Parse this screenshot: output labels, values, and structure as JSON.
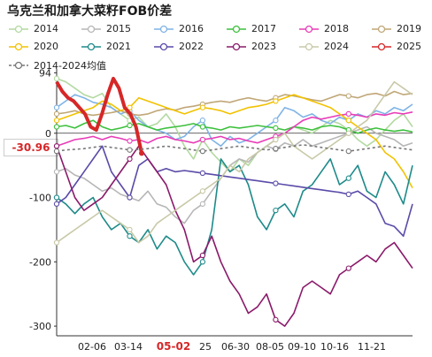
{
  "title": "乌克兰和加拿大菜籽FOB价差",
  "legend": [
    {
      "label": "2014",
      "color": "#b3d9a1"
    },
    {
      "label": "2015",
      "color": "#b6b6b6"
    },
    {
      "label": "2016",
      "color": "#7fb3e6"
    },
    {
      "label": "2017",
      "color": "#3cc03c"
    },
    {
      "label": "2018",
      "color": "#e83cb7"
    },
    {
      "label": "2019",
      "color": "#c0a777"
    },
    {
      "label": "2020",
      "color": "#f2c200"
    },
    {
      "label": "2021",
      "color": "#1f8a8a"
    },
    {
      "label": "2022",
      "color": "#5a4aa8"
    },
    {
      "label": "2023",
      "color": "#8a1a6a"
    },
    {
      "label": "2024",
      "color": "#c9c9a8"
    },
    {
      "label": "2025",
      "color": "#d62728"
    },
    {
      "label": "2014-2024均值",
      "color": "#777777"
    }
  ],
  "current_value_label": "-30.96",
  "chart_data": {
    "type": "line",
    "title": "乌克兰和加拿大菜籽FOB价差",
    "x_tick_labels": [
      "02-06",
      "03-14",
      "05-02",
      "25",
      "06-30",
      "08-05",
      "09-10",
      "10-16",
      "11-21"
    ],
    "highlighted_tick": "05-02",
    "y_tick_labels": [
      "94",
      "0",
      "-100",
      "-200",
      "-300"
    ],
    "ylim": [
      -315,
      100
    ],
    "grid": false,
    "series": [
      {
        "name": "2014",
        "color": "#b3d9a1",
        "values": [
          85,
          80,
          70,
          60,
          55,
          62,
          40,
          30,
          20,
          25,
          10,
          15,
          30,
          10,
          -20,
          -40,
          -10,
          -30,
          -45,
          -60,
          -40,
          -50,
          -30,
          -20,
          -10,
          0,
          10,
          5,
          0,
          10,
          20,
          15,
          5,
          -10,
          -20,
          -10,
          5,
          20,
          30,
          10
        ]
      },
      {
        "name": "2015",
        "color": "#b6b6b6",
        "values": [
          -60,
          -55,
          -65,
          -70,
          -80,
          -90,
          -85,
          -95,
          -100,
          -105,
          -90,
          -110,
          -115,
          -130,
          -140,
          -120,
          -110,
          -90,
          -70,
          -50,
          -40,
          -45,
          -30,
          -20,
          -25,
          -15,
          -20,
          -10,
          -20,
          -15,
          -10,
          -5,
          0,
          5,
          10,
          0,
          -5,
          -10,
          -20,
          -15
        ]
      },
      {
        "name": "2016",
        "color": "#7fb3e6",
        "values": [
          40,
          50,
          60,
          55,
          48,
          45,
          40,
          30,
          35,
          20,
          10,
          5,
          0,
          -10,
          -5,
          10,
          20,
          -10,
          -20,
          -5,
          -15,
          -10,
          0,
          10,
          20,
          40,
          35,
          25,
          30,
          20,
          15,
          25,
          20,
          30,
          25,
          35,
          30,
          40,
          35,
          45
        ]
      },
      {
        "name": "2017",
        "color": "#3cc03c",
        "values": [
          10,
          12,
          8,
          15,
          20,
          10,
          5,
          8,
          12,
          15,
          10,
          5,
          8,
          10,
          12,
          15,
          10,
          8,
          5,
          10,
          8,
          10,
          12,
          10,
          8,
          5,
          10,
          8,
          5,
          10,
          12,
          10,
          5,
          0,
          5,
          8,
          5,
          3,
          5,
          2
        ]
      },
      {
        "name": "2018",
        "color": "#e83cb7",
        "values": [
          -20,
          -15,
          -10,
          -8,
          -5,
          -10,
          -5,
          -8,
          -12,
          -10,
          -15,
          -8,
          -5,
          -10,
          -12,
          -15,
          -10,
          -8,
          -5,
          -10,
          -8,
          -12,
          -15,
          -10,
          -5,
          0,
          10,
          20,
          25,
          22,
          25,
          28,
          30,
          28,
          25,
          30,
          28,
          32,
          30,
          33
        ]
      },
      {
        "name": "2019",
        "color": "#c0a777",
        "values": [
          30,
          32,
          35,
          30,
          28,
          30,
          32,
          35,
          30,
          28,
          30,
          35,
          38,
          36,
          40,
          42,
          45,
          48,
          50,
          48,
          52,
          55,
          52,
          50,
          55,
          60,
          58,
          55,
          52,
          50,
          55,
          60,
          58,
          55,
          60,
          62,
          58,
          65,
          60,
          62
        ]
      },
      {
        "name": "2020",
        "color": "#f2c200",
        "values": [
          20,
          25,
          30,
          35,
          40,
          50,
          45,
          35,
          40,
          55,
          50,
          45,
          40,
          35,
          30,
          35,
          40,
          38,
          35,
          30,
          35,
          40,
          42,
          45,
          50,
          55,
          60,
          55,
          50,
          45,
          40,
          30,
          20,
          10,
          0,
          -10,
          -30,
          -40,
          -60,
          -85
        ]
      },
      {
        "name": "2021",
        "color": "#1f8a8a",
        "values": [
          -100,
          -110,
          -125,
          -110,
          -100,
          -130,
          -150,
          -140,
          -160,
          -170,
          -150,
          -180,
          -160,
          -170,
          -200,
          -220,
          -200,
          -150,
          -40,
          -60,
          -50,
          -80,
          -130,
          -150,
          -120,
          -110,
          -130,
          -90,
          -80,
          -60,
          -40,
          -80,
          -70,
          -50,
          -90,
          -100,
          -60,
          -80,
          -110,
          -50
        ]
      },
      {
        "name": "2022",
        "color": "#5a4aa8",
        "values": [
          -110,
          -100,
          -80,
          -60,
          -40,
          -20,
          -60,
          -80,
          -100,
          -50,
          -40,
          -60,
          -55,
          -60,
          -58,
          -60,
          -62,
          -64,
          -66,
          -68,
          -70,
          -72,
          -74,
          -76,
          -78,
          -80,
          -82,
          -84,
          -86,
          -88,
          -90,
          -92,
          -95,
          -90,
          -100,
          -110,
          -140,
          -145,
          -160,
          -110
        ]
      },
      {
        "name": "2023",
        "color": "#8a1a6a",
        "values": [
          -20,
          -60,
          -100,
          -120,
          -110,
          -100,
          -80,
          -60,
          -40,
          -20,
          -40,
          -60,
          -80,
          -120,
          -150,
          -200,
          -190,
          -160,
          -200,
          -230,
          -250,
          -280,
          -270,
          -250,
          -290,
          -300,
          -280,
          -240,
          -230,
          -240,
          -250,
          -220,
          -210,
          -200,
          -190,
          -200,
          -180,
          -170,
          -190,
          -210
        ]
      },
      {
        "name": "2024",
        "color": "#c9c9a8",
        "values": [
          -170,
          -160,
          -150,
          -140,
          -130,
          -120,
          -130,
          -140,
          -150,
          -170,
          -160,
          -140,
          -130,
          -120,
          -110,
          -100,
          -90,
          -80,
          -70,
          -50,
          -60,
          -40,
          -30,
          -20,
          -10,
          0,
          -20,
          -30,
          -40,
          -30,
          -20,
          -10,
          0,
          10,
          20,
          40,
          60,
          80,
          70,
          60
        ]
      },
      {
        "name": "2025",
        "color": "#d62728",
        "values": [
          80,
          65,
          55,
          50,
          40,
          30,
          10,
          5,
          30,
          60,
          85,
          70,
          40,
          30,
          10,
          -31
        ]
      },
      {
        "name": "2014-2024均值",
        "color": "#777777",
        "dashed": true,
        "values": [
          -28,
          -26,
          -25,
          -24,
          -22,
          -20,
          -22,
          -24,
          -26,
          -25,
          -24,
          -22,
          -20,
          -22,
          -24,
          -26,
          -28,
          -26,
          -24,
          -22,
          -20,
          -22,
          -24,
          -26,
          -24,
          -22,
          -20,
          -18,
          -20,
          -22,
          -24,
          -26,
          -28,
          -26,
          -24,
          -22,
          -20,
          -22,
          -24,
          -26
        ]
      }
    ]
  }
}
